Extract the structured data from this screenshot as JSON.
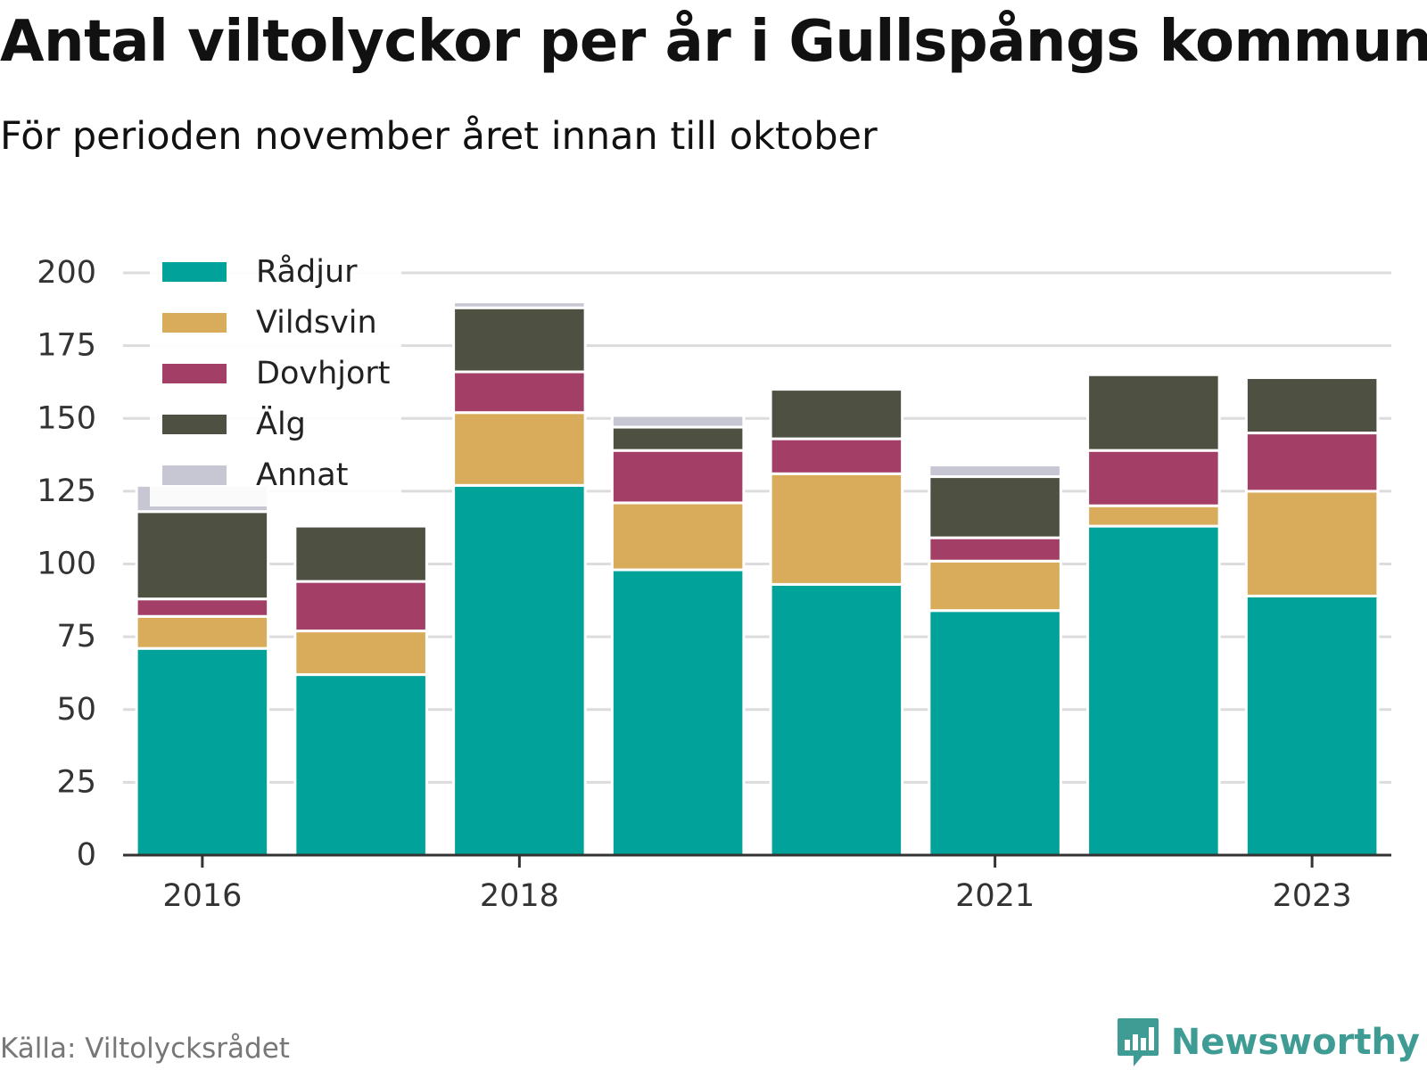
{
  "title": "Antal viltolyckor per år i Gullspångs kommun",
  "subtitle": "För perioden november året innan till oktober",
  "source": "Källa: Viltolycksrådet",
  "brand": {
    "name": "Newsworthy",
    "icon": "bar-chart-speech-bubble-icon",
    "color": "#3f9c94"
  },
  "chart_data": {
    "type": "bar",
    "stacked": true,
    "categories": [
      "2016",
      "2017",
      "2018",
      "2019",
      "2020",
      "2021",
      "2022",
      "2023"
    ],
    "x_tick_labels": [
      "2016",
      "",
      "2018",
      "",
      "",
      "2021",
      "",
      "2023"
    ],
    "series": [
      {
        "name": "Rådjur",
        "color": "#00a29a",
        "values": [
          71,
          62,
          127,
          98,
          93,
          84,
          113,
          89
        ]
      },
      {
        "name": "Vildsvin",
        "color": "#d8ac5a",
        "values": [
          11,
          15,
          25,
          23,
          38,
          17,
          7,
          36
        ]
      },
      {
        "name": "Dovhjort",
        "color": "#a33f66",
        "values": [
          6,
          17,
          14,
          18,
          12,
          8,
          19,
          20
        ]
      },
      {
        "name": "Älg",
        "color": "#4e5042",
        "values": [
          30,
          19,
          22,
          8,
          17,
          21,
          26,
          19
        ]
      },
      {
        "name": "Annat",
        "color": "#c7c7d3",
        "values": [
          9,
          0,
          2,
          4,
          0,
          4,
          0,
          0
        ]
      }
    ],
    "ylim": [
      0,
      200
    ],
    "yticks": [
      0,
      25,
      50,
      75,
      100,
      125,
      150,
      175,
      200
    ],
    "grid": true,
    "legend_position": "top-left"
  }
}
